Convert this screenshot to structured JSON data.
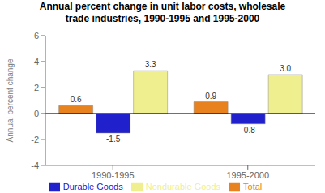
{
  "chart_data": {
    "type": "bar",
    "title": "Annual percent change in unit labor costs, wholesale\ntrade industries, 1990-1995 and 1995-2000",
    "categories": [
      "1990-1995",
      "1995-2000"
    ],
    "series": [
      {
        "name": "Total",
        "color": "#e8821e",
        "values": [
          0.6,
          0.9
        ],
        "value_labels": [
          "0.6",
          "0.9"
        ]
      },
      {
        "name": "Durable Goods",
        "color": "#2020cc",
        "values": [
          -1.5,
          -0.8
        ],
        "value_labels": [
          "-1.5",
          "-0.8"
        ]
      },
      {
        "name": "Nondurable Goods",
        "color": "#f0ef90",
        "values": [
          3.3,
          3.0
        ],
        "value_labels": [
          "3.3",
          "3.0"
        ]
      }
    ],
    "ylabel": "Annual percent change",
    "ylim": [
      -4,
      6
    ],
    "yticks": [
      -4,
      -2,
      0,
      2,
      4,
      6
    ],
    "grid": false,
    "legend": "bottom",
    "data_labels": true
  }
}
